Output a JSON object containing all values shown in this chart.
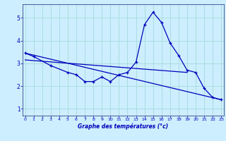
{
  "xlabel": "Graphe des températures (°c)",
  "bg_color": "#cceeff",
  "grid_color": "#aadddd",
  "line_color": "#0000bb",
  "hours": [
    0,
    1,
    2,
    3,
    4,
    5,
    6,
    7,
    8,
    9,
    10,
    11,
    12,
    13,
    14,
    15,
    16,
    17,
    18,
    19,
    20,
    21,
    22,
    23
  ],
  "curve_main": [
    3.45,
    3.3,
    null,
    2.9,
    null,
    2.6,
    2.5,
    2.2,
    2.2,
    2.4,
    2.2,
    2.5,
    2.6,
    3.05,
    4.7,
    5.25,
    4.8,
    3.9,
    3.35,
    2.7,
    2.6,
    1.9,
    1.5,
    1.4
  ],
  "straight_line1_x": [
    0,
    23
  ],
  "straight_line1_y": [
    3.45,
    1.4
  ],
  "straight_line2_x": [
    0,
    19
  ],
  "straight_line2_y": [
    3.15,
    2.6
  ],
  "ylim": [
    0.7,
    5.6
  ],
  "xlim": [
    -0.3,
    23.3
  ],
  "yticks": [
    1,
    2,
    3,
    4,
    5
  ],
  "xticks": [
    0,
    1,
    2,
    3,
    4,
    5,
    6,
    7,
    8,
    9,
    10,
    11,
    12,
    13,
    14,
    15,
    16,
    17,
    18,
    19,
    20,
    21,
    22,
    23
  ]
}
